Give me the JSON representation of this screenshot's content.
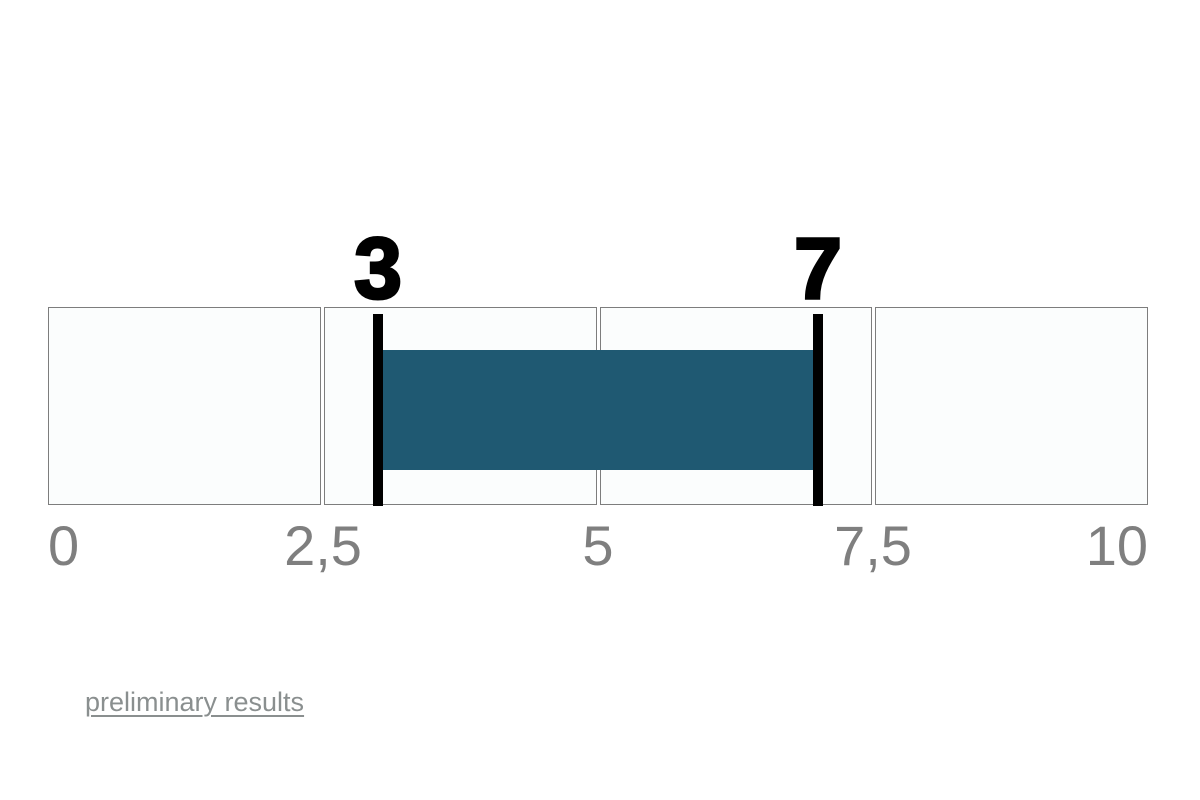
{
  "chart_data": {
    "type": "bar",
    "subtype": "horizontal-range-strip",
    "title": "",
    "axis": {
      "min": 0,
      "max": 10,
      "grid": false,
      "ticks": [
        {
          "value": 0,
          "label": "0",
          "align": "start"
        },
        {
          "value": 2.5,
          "label": "2,5",
          "align": "center"
        },
        {
          "value": 5,
          "label": "5",
          "align": "center"
        },
        {
          "value": 7.5,
          "label": "7,5",
          "align": "center"
        },
        {
          "value": 10,
          "label": "10",
          "align": "end"
        }
      ]
    },
    "segments": [
      {
        "from": 0,
        "to": 2.5
      },
      {
        "from": 2.5,
        "to": 5
      },
      {
        "from": 5,
        "to": 7.5
      },
      {
        "from": 7.5,
        "to": 10
      }
    ],
    "range": {
      "start": 3,
      "end": 7
    },
    "markers": [
      {
        "value": 3,
        "label": "3"
      },
      {
        "value": 7,
        "label": "7"
      }
    ]
  },
  "colors": {
    "page_bg": "#ffffff",
    "bar": "#1f5972",
    "marker": "#000000",
    "marker_label_text": "#000000",
    "segment_fill": "#fbfdfd",
    "segment_border": "#7d7d7d",
    "tick_text": "#7f7f7f",
    "link_text": "#8a8f8f"
  },
  "footer": {
    "link_label": "preliminary results"
  }
}
